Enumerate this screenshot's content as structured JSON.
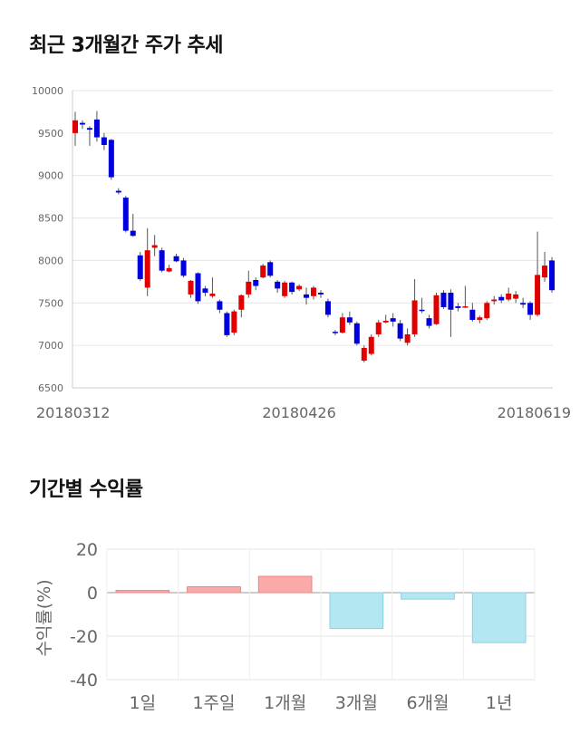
{
  "sections": {
    "price_title": "최근 3개월간 주가 추세",
    "return_title": "기간별 수익률"
  },
  "chart_data": [
    {
      "type": "candlestick",
      "title": "최근 3개월간 주가 추세",
      "ylim": [
        6500,
        10000
      ],
      "yticks": [
        6500,
        7000,
        7500,
        8000,
        8500,
        9000,
        9500,
        10000
      ],
      "x_tick_labels": [
        {
          "label": "20180312",
          "index": 0
        },
        {
          "label": "20180426",
          "index": 31
        },
        {
          "label": "20180619",
          "index": 66
        }
      ],
      "up_color": "#e00000",
      "down_color": "#0000dd",
      "candles": [
        [
          9500,
          9650,
          9350,
          9750
        ],
        [
          9620,
          9600,
          9550,
          9650
        ],
        [
          9560,
          9540,
          9350,
          9580
        ],
        [
          9660,
          9450,
          9400,
          9760
        ],
        [
          9450,
          9360,
          9300,
          9500
        ],
        [
          9420,
          8980,
          8950,
          9430
        ],
        [
          8820,
          8800,
          8780,
          8850
        ],
        [
          8740,
          8350,
          8330,
          8760
        ],
        [
          8350,
          8290,
          8280,
          8550
        ],
        [
          8060,
          7780,
          7760,
          8100
        ],
        [
          7680,
          8120,
          7580,
          8380
        ],
        [
          8150,
          8180,
          8050,
          8300
        ],
        [
          8120,
          7880,
          7860,
          8150
        ],
        [
          7870,
          7910,
          7860,
          7950
        ],
        [
          8050,
          7990,
          7980,
          8080
        ],
        [
          8000,
          7820,
          7800,
          8030
        ],
        [
          7600,
          7760,
          7560,
          7770
        ],
        [
          7850,
          7520,
          7490,
          7860
        ],
        [
          7670,
          7620,
          7580,
          7700
        ],
        [
          7580,
          7610,
          7560,
          7800
        ],
        [
          7520,
          7420,
          7380,
          7540
        ],
        [
          7380,
          7120,
          7100,
          7400
        ],
        [
          7150,
          7400,
          7120,
          7420
        ],
        [
          7420,
          7590,
          7330,
          7600
        ],
        [
          7600,
          7750,
          7560,
          7880
        ],
        [
          7770,
          7700,
          7650,
          7800
        ],
        [
          7800,
          7940,
          7790,
          7960
        ],
        [
          7980,
          7820,
          7800,
          8000
        ],
        [
          7750,
          7670,
          7620,
          7770
        ],
        [
          7580,
          7740,
          7560,
          7760
        ],
        [
          7740,
          7630,
          7600,
          7750
        ],
        [
          7660,
          7700,
          7640,
          7720
        ],
        [
          7600,
          7560,
          7480,
          7680
        ],
        [
          7580,
          7680,
          7540,
          7700
        ],
        [
          7620,
          7600,
          7560,
          7650
        ],
        [
          7520,
          7360,
          7330,
          7550
        ],
        [
          7160,
          7150,
          7120,
          7180
        ],
        [
          7150,
          7330,
          7140,
          7380
        ],
        [
          7330,
          7270,
          7240,
          7400
        ],
        [
          7260,
          7020,
          7000,
          7280
        ],
        [
          6820,
          6970,
          6800,
          7000
        ],
        [
          6900,
          7100,
          6880,
          7130
        ],
        [
          7130,
          7270,
          7100,
          7300
        ],
        [
          7270,
          7290,
          7260,
          7360
        ],
        [
          7320,
          7280,
          7220,
          7380
        ],
        [
          7260,
          7080,
          7050,
          7300
        ],
        [
          7030,
          7130,
          7000,
          7200
        ],
        [
          7130,
          7530,
          7100,
          7780
        ],
        [
          7420,
          7410,
          7380,
          7560
        ],
        [
          7320,
          7230,
          7200,
          7360
        ],
        [
          7250,
          7590,
          7240,
          7620
        ],
        [
          7620,
          7450,
          7430,
          7650
        ],
        [
          7620,
          7420,
          7100,
          7660
        ],
        [
          7460,
          7440,
          7400,
          7500
        ],
        [
          7460,
          7460,
          7440,
          7700
        ],
        [
          7420,
          7300,
          7280,
          7500
        ],
        [
          7300,
          7330,
          7260,
          7350
        ],
        [
          7320,
          7500,
          7300,
          7520
        ],
        [
          7520,
          7540,
          7480,
          7580
        ],
        [
          7570,
          7530,
          7500,
          7600
        ],
        [
          7540,
          7610,
          7520,
          7680
        ],
        [
          7550,
          7600,
          7500,
          7640
        ],
        [
          7500,
          7480,
          7440,
          7560
        ],
        [
          7500,
          7360,
          7300,
          7520
        ],
        [
          7360,
          7830,
          7340,
          8340
        ],
        [
          7800,
          7940,
          7750,
          8100
        ],
        [
          8000,
          7650,
          7620,
          8040
        ]
      ]
    },
    {
      "type": "bar",
      "title": "기간별 수익률",
      "ylabel": "수익률(%)",
      "ylim": [
        -40,
        20
      ],
      "yticks": [
        20,
        0,
        -20,
        -40
      ],
      "categories": [
        "1일",
        "1주일",
        "1개월",
        "3개월",
        "6개월",
        "1년"
      ],
      "values": [
        1.0,
        2.7,
        7.5,
        -16.5,
        -3.0,
        -23.0
      ],
      "positive_color": "#fbaaaa",
      "positive_stroke": "#f08080",
      "negative_color": "#b3e8f2",
      "negative_stroke": "#8ccfdf"
    }
  ]
}
